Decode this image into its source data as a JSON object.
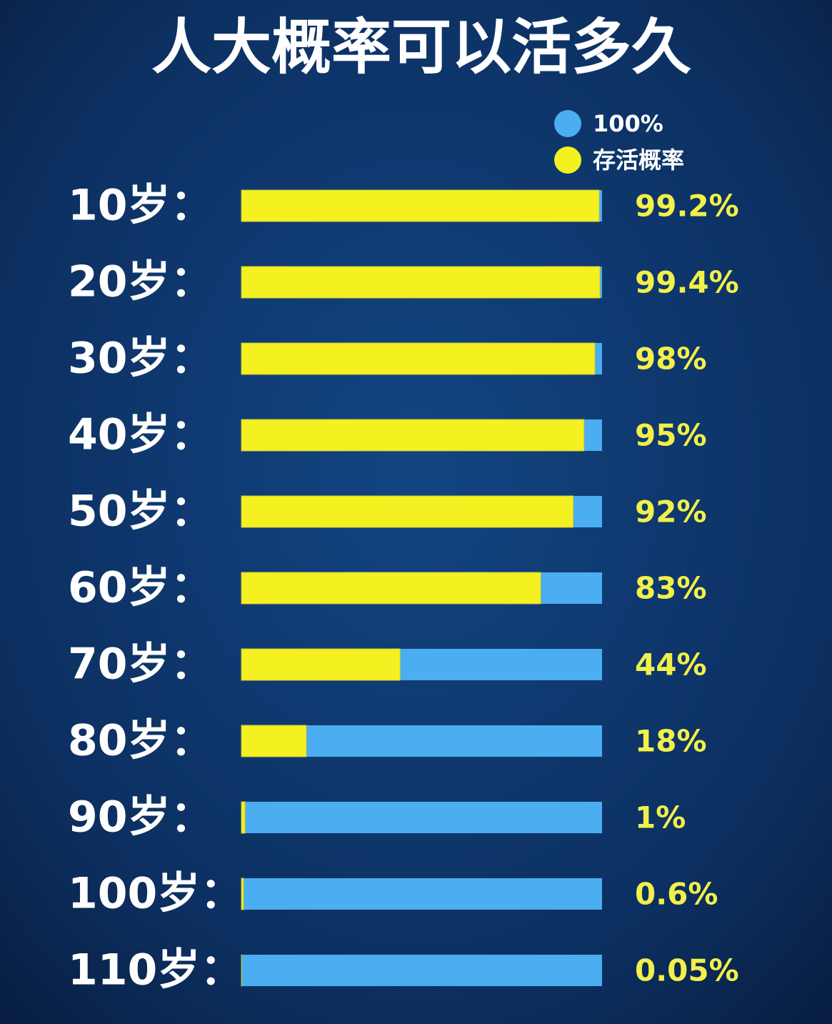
{
  "chart_data": {
    "type": "bar",
    "orientation": "horizontal",
    "title": "人大概率可以活多久",
    "categories": [
      "10岁：",
      "20岁：",
      "30岁：",
      "40岁：",
      "50岁：",
      "60岁：",
      "70岁：",
      "80岁：",
      "90岁：",
      "100岁：",
      "110岁："
    ],
    "xlim": [
      0,
      100
    ],
    "series": [
      {
        "name": "100%",
        "color": "#4aaef0",
        "values": [
          100,
          100,
          100,
          100,
          100,
          100,
          100,
          100,
          100,
          100,
          100
        ]
      },
      {
        "name": "存活概率",
        "color": "#f5f020",
        "values": [
          99.2,
          99.4,
          98,
          95,
          92,
          83,
          44,
          18,
          1,
          0.6,
          0.05
        ],
        "value_labels": [
          "99.2%",
          "99.4%",
          "98%",
          "95%",
          "92%",
          "83%",
          "44%",
          "18%",
          "1%",
          "0.6%",
          "0.05%"
        ]
      }
    ],
    "overlap": true
  }
}
